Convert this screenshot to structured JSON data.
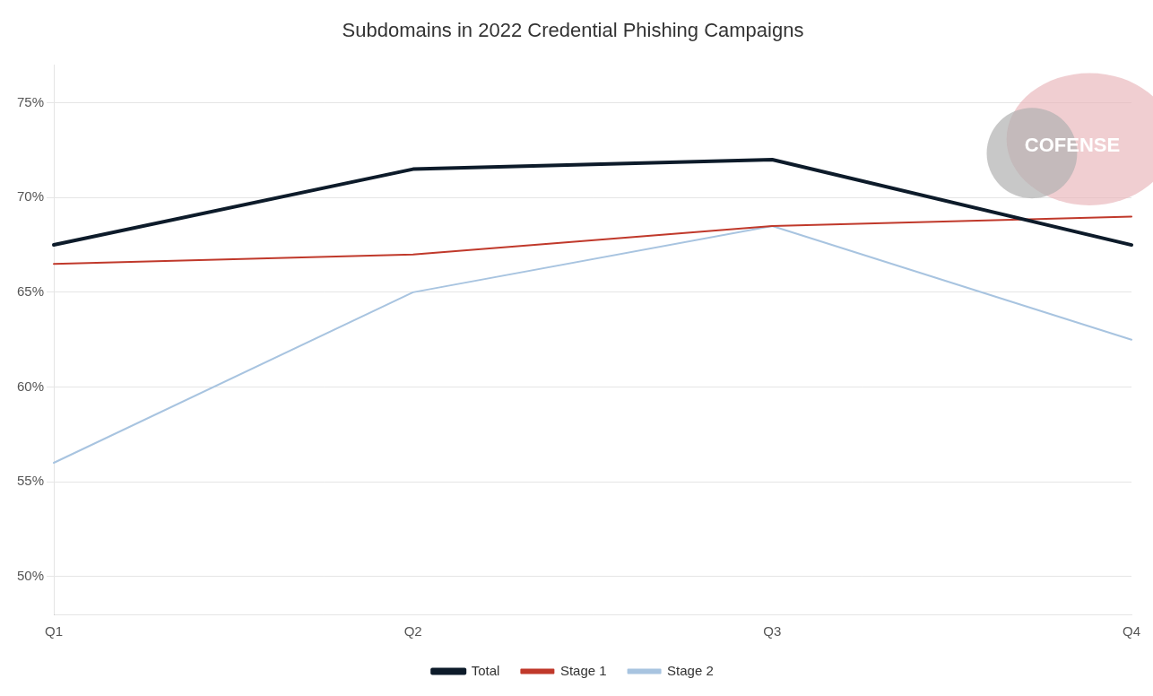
{
  "chart_data": {
    "type": "line",
    "title": "Subdomains in 2022 Credential Phishing Campaigns",
    "categories": [
      "Q1",
      "Q2",
      "Q3",
      "Q4"
    ],
    "series": [
      {
        "name": "Total",
        "color": "#0d1b2a",
        "values": [
          67.5,
          71.5,
          72.0,
          67.5
        ]
      },
      {
        "name": "Stage 1",
        "color": "#c0392b",
        "values": [
          66.5,
          67.0,
          68.5,
          69.0
        ]
      },
      {
        "name": "Stage 2",
        "color": "#a8c4e0",
        "values": [
          56.0,
          65.0,
          68.5,
          62.5
        ]
      }
    ],
    "ylim": [
      48,
      77
    ],
    "yticks": [
      {
        "value": 50,
        "label": "50%"
      },
      {
        "value": 55,
        "label": "55%"
      },
      {
        "value": 60,
        "label": "60%"
      },
      {
        "value": 65,
        "label": "65%"
      },
      {
        "value": 70,
        "label": "70%"
      },
      {
        "value": 75,
        "label": "75%"
      }
    ],
    "grid": true,
    "legend": "bottom",
    "annotations": [
      "COFENSE"
    ]
  }
}
